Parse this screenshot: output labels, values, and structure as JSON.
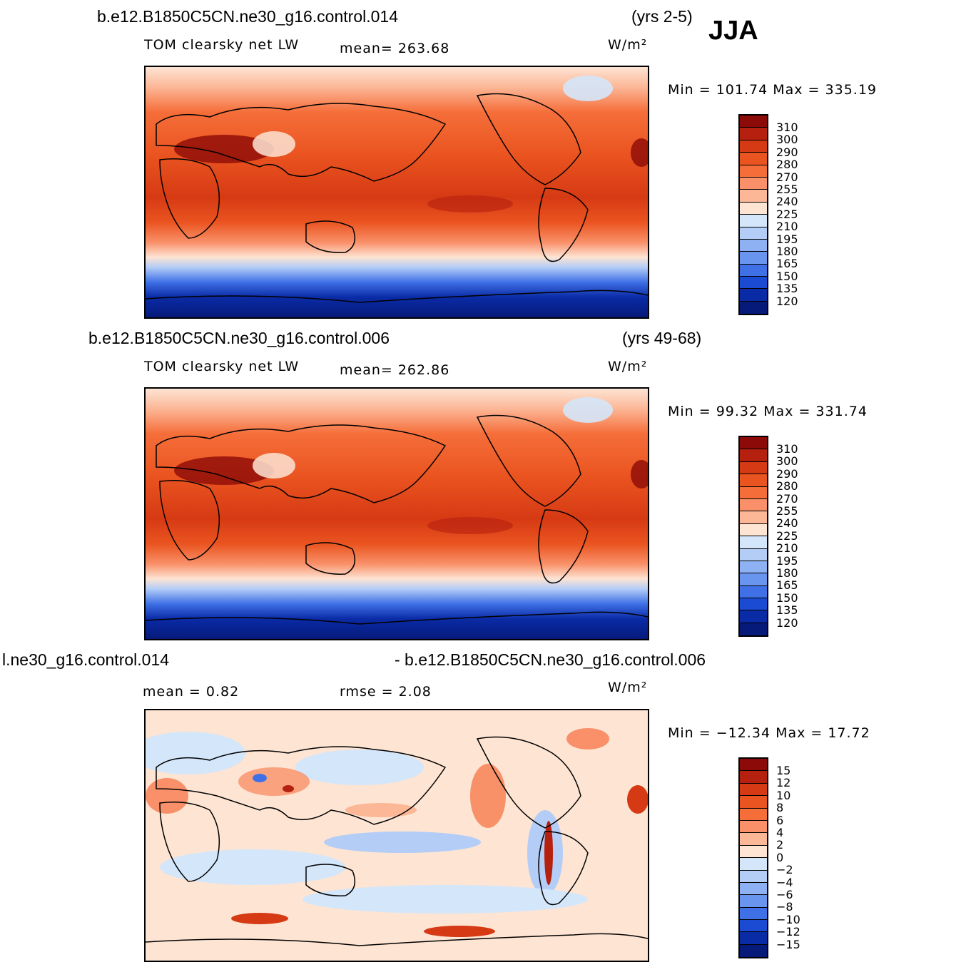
{
  "season": "JJA",
  "panels": [
    {
      "id": "top",
      "case_left": "b.e12.B1850C5CN.ne30_g16.control.014",
      "case_right": "(yrs 2-5)",
      "field_label": "TOM clearsky net LW",
      "stat1": "mean= 263.68",
      "stat2": "",
      "units": "W/m²",
      "minmax": "Min = 101.74 Max = 335.19"
    },
    {
      "id": "middle",
      "case_left": "b.e12.B1850C5CN.ne30_g16.control.006",
      "case_right": "(yrs 49-68)",
      "field_label": "TOM clearsky net LW",
      "stat1": "mean= 262.86",
      "stat2": "",
      "units": "W/m²",
      "minmax": "Min =  99.32 Max = 331.74"
    },
    {
      "id": "diff",
      "case_left": "l.ne30_g16.control.014",
      "case_right": "- b.e12.B1850C5CN.ne30_g16.control.006",
      "field_label": "",
      "stat1": "mean =    0.82",
      "stat2": "rmse =    2.08",
      "units": "W/m²",
      "minmax": "Min = −12.34 Max =  17.72"
    }
  ],
  "colorbar_abs": {
    "labels": [
      "310",
      "300",
      "290",
      "280",
      "270",
      "255",
      "240",
      "225",
      "210",
      "195",
      "180",
      "165",
      "150",
      "135",
      "120"
    ],
    "colors": [
      "#8c0a08",
      "#b5200f",
      "#d63a14",
      "#ea5420",
      "#f56e3a",
      "#f99069",
      "#fcb797",
      "#fde4d3",
      "#d4e6fa",
      "#b3cdf7",
      "#8eb1f3",
      "#6995ee",
      "#3f70e6",
      "#1a4bd2",
      "#0a2ba6",
      "#061a7a"
    ]
  },
  "colorbar_diff": {
    "labels": [
      "15",
      "12",
      "10",
      "8",
      "6",
      "4",
      "2",
      "0",
      "−2",
      "−4",
      "−6",
      "−8",
      "−10",
      "−12",
      "−15"
    ],
    "colors": [
      "#8c0a08",
      "#b5200f",
      "#d63a14",
      "#ea5420",
      "#f56e3a",
      "#f99069",
      "#fcb797",
      "#fde4d3",
      "#d4e6fa",
      "#b3cdf7",
      "#8eb1f3",
      "#6995ee",
      "#3f70e6",
      "#1a4bd2",
      "#0a2ba6",
      "#061a7a"
    ]
  }
}
